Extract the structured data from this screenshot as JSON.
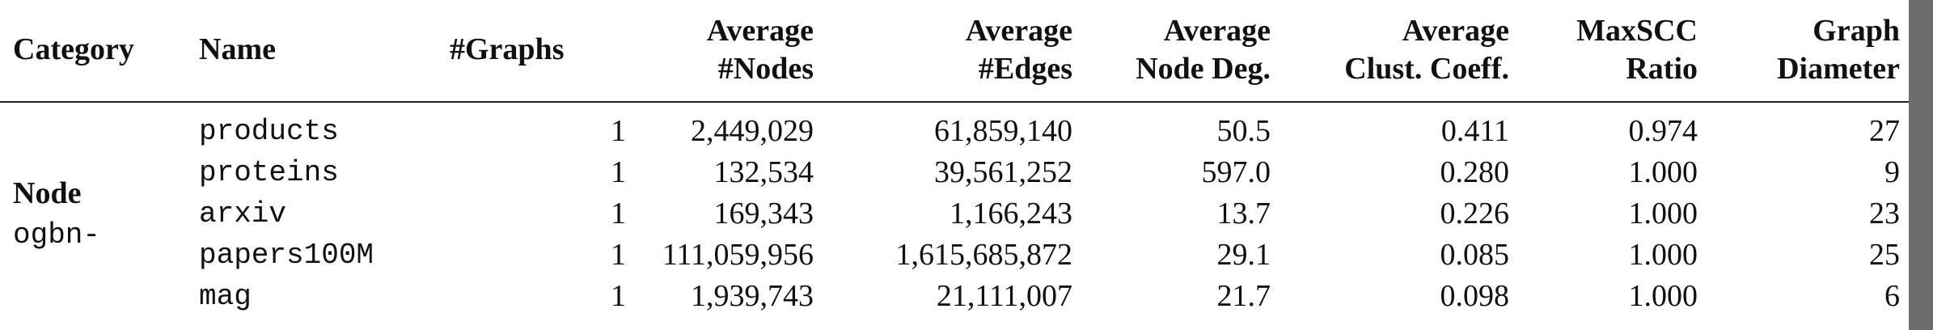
{
  "table": {
    "headers": [
      {
        "line1": "Category",
        "line2": ""
      },
      {
        "line1": "Name",
        "line2": ""
      },
      {
        "line1": "#Graphs",
        "line2": ""
      },
      {
        "line1": "Average",
        "line2": "#Nodes"
      },
      {
        "line1": "Average",
        "line2": "#Edges"
      },
      {
        "line1": "Average",
        "line2": "Node Deg."
      },
      {
        "line1": "Average",
        "line2": "Clust. Coeff."
      },
      {
        "line1": "MaxSCC",
        "line2": "Ratio"
      },
      {
        "line1": "Graph",
        "line2": "Diameter"
      }
    ],
    "category": {
      "label": "Node",
      "prefix": "ogbn-"
    },
    "rows": [
      {
        "name": "products",
        "graphs": "1",
        "nodes": "2,449,029",
        "edges": "61,859,140",
        "degree": "50.5",
        "clust": "0.411",
        "maxscc": "0.974",
        "diameter": "27"
      },
      {
        "name": "proteins",
        "graphs": "1",
        "nodes": "132,534",
        "edges": "39,561,252",
        "degree": "597.0",
        "clust": "0.280",
        "maxscc": "1.000",
        "diameter": "9"
      },
      {
        "name": "arxiv",
        "graphs": "1",
        "nodes": "169,343",
        "edges": "1,166,243",
        "degree": "13.7",
        "clust": "0.226",
        "maxscc": "1.000",
        "diameter": "23"
      },
      {
        "name": "papers100M",
        "graphs": "1",
        "nodes": "111,059,956",
        "edges": "1,615,685,872",
        "degree": "29.1",
        "clust": "0.085",
        "maxscc": "1.000",
        "diameter": "25"
      },
      {
        "name": "mag",
        "graphs": "1",
        "nodes": "1,939,743",
        "edges": "21,111,007",
        "degree": "21.7",
        "clust": "0.098",
        "maxscc": "1.000",
        "diameter": "6"
      }
    ]
  }
}
